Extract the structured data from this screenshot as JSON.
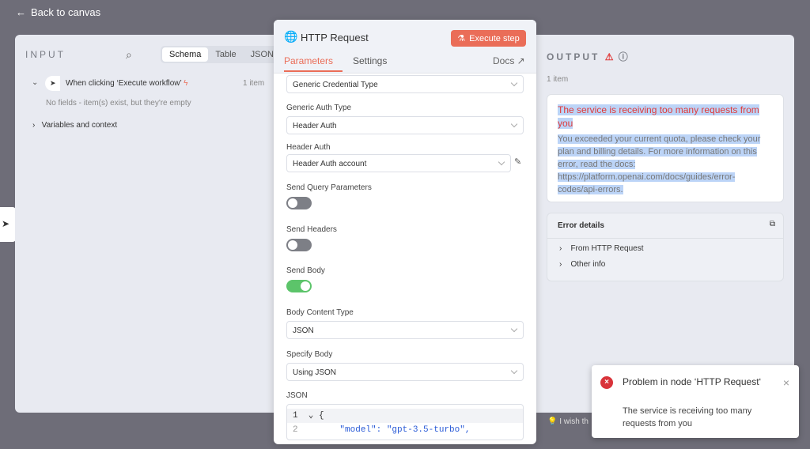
{
  "back_label": "Back to canvas",
  "input": {
    "title": "INPUT",
    "tabs": [
      "Schema",
      "Table",
      "JSON"
    ],
    "trigger": "When clicking ‘Execute workflow’",
    "count": "1 item",
    "empty": "No fields - item(s) exist, but they're empty",
    "vars": "Variables and context"
  },
  "node": {
    "title": "HTTP Request",
    "execute": "Execute step",
    "tabs": {
      "params": "Parameters",
      "settings": "Settings",
      "docs": "Docs"
    },
    "fields": {
      "cred_type": "Generic Credential Type",
      "auth_type_label": "Generic Auth Type",
      "auth_type": "Header Auth",
      "header_auth_label": "Header Auth",
      "header_auth": "Header Auth account",
      "query_label": "Send Query Parameters",
      "headers_label": "Send Headers",
      "body_label": "Send Body",
      "content_type_label": "Body Content Type",
      "content_type": "JSON",
      "specify_label": "Specify Body",
      "specify": "Using JSON",
      "json_label": "JSON"
    },
    "toggles": {
      "query": false,
      "headers": false,
      "body": true
    },
    "code": {
      "line1_no": "1",
      "line1": "{",
      "line2_no": "2",
      "line2": "  \"model\": \"gpt-3.5-turbo\","
    }
  },
  "output": {
    "title": "OUTPUT",
    "count": "1 item",
    "error_title": "The service is receiving too many requests from you",
    "error_msg": "You exceeded your current quota, please check your plan and billing details. For more information on this error, read the docs: https://platform.openai.com/docs/guides/error-codes/api-errors.",
    "details_title": "Error details",
    "details_items": [
      "From HTTP Request",
      "Other info"
    ],
    "feedback": "I wish th"
  },
  "toast": {
    "title": "Problem in node ‘HTTP Request‘",
    "message": "The service is receiving too many requests from you"
  },
  "colors": {
    "accent": "#ea6d58",
    "error": "#e03a3a",
    "toggle_on": "#5cc46a"
  }
}
